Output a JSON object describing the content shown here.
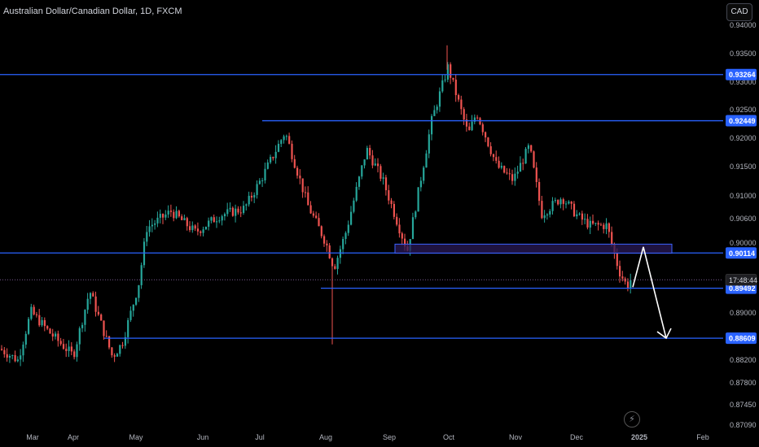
{
  "header": {
    "title": "Australian Dollar/Canadian Dollar, 1D, FXCM",
    "currency_button": "CAD"
  },
  "chart_data": {
    "type": "candlestick",
    "ylim": [
      0.8709,
      0.9415
    ],
    "y_ticks": [
      "0.94000",
      "0.93500",
      "0.93000",
      "0.92500",
      "0.92000",
      "0.91500",
      "0.91000",
      "0.90600",
      "0.90000",
      "0.89500",
      "0.89000",
      "0.88500",
      "0.88200",
      "0.87800",
      "0.87450",
      "0.87090"
    ],
    "x_labels": [
      "Mar",
      "Apr",
      "May",
      "Jun",
      "Jul",
      "Aug",
      "Sep",
      "Oct",
      "Nov",
      "Dec",
      "2025",
      "Feb"
    ],
    "horizontal_levels": [
      {
        "label": "0.93264",
        "value": 0.93264,
        "from_month": "Mar"
      },
      {
        "label": "0.92449",
        "value": 0.92449,
        "from_month": "Jul"
      },
      {
        "label": "0.90114",
        "value": 0.90114,
        "from_month": "Mar"
      },
      {
        "label": "0.89492",
        "value": 0.89492,
        "from_month": "Aug"
      },
      {
        "label": "0.88609",
        "value": 0.88609,
        "from_month": "Apr"
      }
    ],
    "current_price_line": 0.8964,
    "countdown_label": "17:48:44",
    "zone": {
      "from": 0.9011,
      "to": 0.9027,
      "start_month": "Sep",
      "end_month": "2025"
    },
    "projection_path": [
      {
        "t": "late Dec 2024",
        "y": 0.8951
      },
      {
        "t": "mid Jan 2025",
        "y": 0.9022
      },
      {
        "t": "late Jan 2025",
        "y": 0.8861
      }
    ],
    "colors": {
      "up": "#26a69a",
      "down": "#ef5350",
      "level": "#2962ff",
      "zone_fill": "#2a1a55",
      "zone_border": "#3c63ff",
      "arrow": "#ffffff",
      "current": "#7a5a90"
    }
  }
}
